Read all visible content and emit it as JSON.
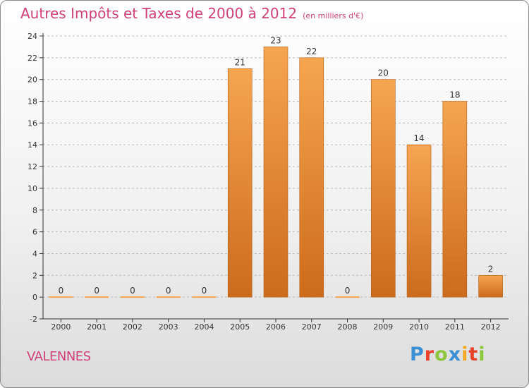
{
  "header": {
    "title": "Autres Impôts et Taxes de 2000 à 2012",
    "unit_note": "(en milliers d'€)"
  },
  "location": "VALENNES",
  "brand": {
    "letters": [
      "P",
      "r",
      "o",
      "x",
      "i",
      "t",
      "i"
    ],
    "colors": [
      "#3b8fd4",
      "#e9412a",
      "#8cc63f",
      "#3b8fd4",
      "#f4a81d",
      "#e9412a",
      "#8cc63f"
    ]
  },
  "colors": {
    "bar_light": "#f6a550",
    "bar_dark": "#cc6b1c",
    "bar_edge": "#b85e16",
    "title": "#d2407a",
    "axis": "#333333",
    "grid": "#bbbbbb"
  },
  "chart_data": {
    "type": "bar",
    "categories": [
      "2000",
      "2001",
      "2002",
      "2003",
      "2004",
      "2005",
      "2006",
      "2007",
      "2008",
      "2009",
      "2010",
      "2011",
      "2012"
    ],
    "values": [
      0,
      0,
      0,
      0,
      0,
      21,
      23,
      22,
      0,
      20,
      14,
      18,
      2
    ],
    "ylim": [
      -2,
      24
    ],
    "yticks": [
      -2,
      0,
      2,
      4,
      6,
      8,
      10,
      12,
      14,
      16,
      18,
      20,
      22,
      24
    ],
    "grid": "horizontal dashed"
  }
}
